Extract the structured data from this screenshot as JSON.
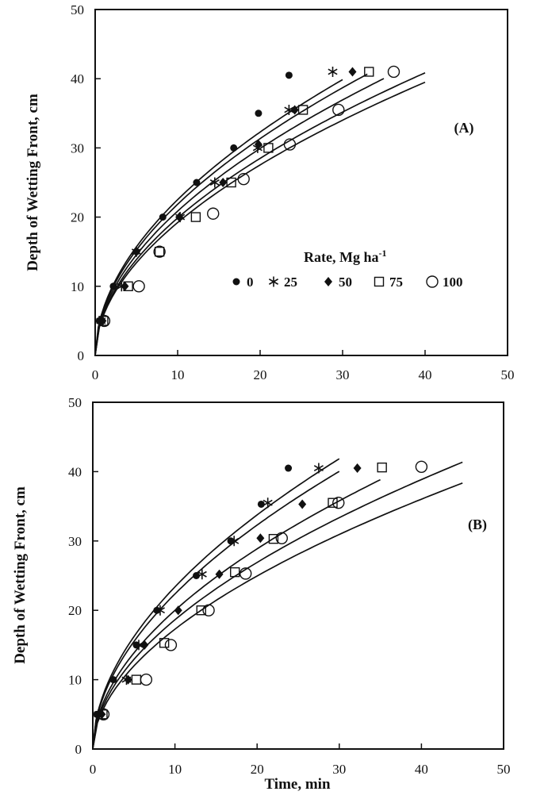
{
  "figure": {
    "xlabel": "Time, min",
    "ylabel": "Depth of Wetting Front, cm",
    "xticks": [
      "0",
      "10",
      "20",
      "30",
      "40",
      "50"
    ],
    "yticks": [
      "0",
      "10",
      "20",
      "30",
      "40",
      "50"
    ],
    "legend": {
      "title": "Rate, Mg ha",
      "title_superscript": "-1",
      "entries": [
        {
          "label": "0",
          "marker": "filled-circle"
        },
        {
          "label": "25",
          "marker": "star"
        },
        {
          "label": "50",
          "marker": "filled-diamond"
        },
        {
          "label": "75",
          "marker": "open-square"
        },
        {
          "label": "100",
          "marker": "open-circle"
        }
      ]
    }
  },
  "chart_data": [
    {
      "type": "scatter",
      "panel_label": "(A)",
      "xlabel": "",
      "ylabel": "Depth of Wetting Front, cm",
      "xlim": [
        0,
        50
      ],
      "ylim": [
        0,
        50
      ],
      "legend_position": "center-right",
      "series": [
        {
          "name": "0",
          "marker": "filled-circle",
          "points": [
            [
              0.5,
              5
            ],
            [
              2.2,
              10
            ],
            [
              5,
              15
            ],
            [
              8.2,
              20
            ],
            [
              12.3,
              25
            ],
            [
              16.8,
              30
            ],
            [
              19.8,
              35
            ],
            [
              23.5,
              40.5
            ]
          ],
          "curve": {
            "a": 6.8,
            "b": 0.52,
            "xmax": 30
          }
        },
        {
          "name": "25",
          "marker": "star",
          "points": [
            [
              0.7,
              5
            ],
            [
              3.2,
              10
            ],
            [
              5,
              15
            ],
            [
              10.3,
              20
            ],
            [
              14.5,
              25
            ],
            [
              19.7,
              30
            ],
            [
              23.5,
              35.5
            ],
            [
              28.8,
              41
            ]
          ],
          "curve": {
            "a": 6.6,
            "b": 0.52,
            "xmax": 33
          }
        },
        {
          "name": "50",
          "marker": "filled-diamond",
          "points": [
            [
              0.9,
              5
            ],
            [
              3.6,
              10
            ],
            [
              5,
              15
            ],
            [
              10.2,
              20
            ],
            [
              15.5,
              25
            ],
            [
              19.8,
              30.5
            ],
            [
              24.2,
              35.5
            ],
            [
              31.2,
              41
            ]
          ],
          "curve": {
            "a": 6.3,
            "b": 0.52,
            "xmax": 35
          }
        },
        {
          "name": "75",
          "marker": "open-square",
          "points": [
            [
              1,
              5
            ],
            [
              4,
              10
            ],
            [
              7.8,
              15
            ],
            [
              12.2,
              20
            ],
            [
              16.5,
              25
            ],
            [
              21,
              30
            ],
            [
              25.2,
              35.5
            ],
            [
              33.2,
              41
            ]
          ],
          "curve": {
            "a": 6.0,
            "b": 0.52,
            "xmax": 40
          }
        },
        {
          "name": "100",
          "marker": "open-circle",
          "points": [
            [
              1.1,
              5
            ],
            [
              5.3,
              10
            ],
            [
              7.8,
              15
            ],
            [
              14.3,
              20.5
            ],
            [
              18,
              25.5
            ],
            [
              23.6,
              30.5
            ],
            [
              29.5,
              35.5
            ],
            [
              36.2,
              41
            ]
          ],
          "curve": {
            "a": 5.8,
            "b": 0.52,
            "xmax": 40
          }
        }
      ]
    },
    {
      "type": "scatter",
      "panel_label": "(B)",
      "xlabel": "Time, min",
      "ylabel": "Depth of Wetting Front, cm",
      "xlim": [
        0,
        50
      ],
      "ylim": [
        0,
        50
      ],
      "legend_position": "none",
      "series": [
        {
          "name": "0",
          "marker": "filled-circle",
          "points": [
            [
              0.5,
              5
            ],
            [
              2.5,
              10
            ],
            [
              5.3,
              15
            ],
            [
              7.8,
              20
            ],
            [
              12.6,
              25
            ],
            [
              16.8,
              30
            ],
            [
              20.5,
              35.3
            ],
            [
              23.8,
              40.5
            ]
          ],
          "curve": {
            "a": 6.9,
            "b": 0.53,
            "xmax": 30
          }
        },
        {
          "name": "25",
          "marker": "star",
          "points": [
            [
              0.7,
              5
            ],
            [
              4.1,
              10
            ],
            [
              5.6,
              15
            ],
            [
              8.2,
              20
            ],
            [
              13.3,
              25.2
            ],
            [
              17.2,
              30
            ],
            [
              21.3,
              35.5
            ],
            [
              27.5,
              40.5
            ]
          ],
          "curve": {
            "a": 6.6,
            "b": 0.53,
            "xmax": 30
          }
        },
        {
          "name": "50",
          "marker": "filled-diamond",
          "points": [
            [
              1.1,
              5
            ],
            [
              4.3,
              10
            ],
            [
              6.3,
              15
            ],
            [
              10.4,
              20
            ],
            [
              15.4,
              25.2
            ],
            [
              20.4,
              30.4
            ],
            [
              25.5,
              35.3
            ],
            [
              32.2,
              40.5
            ]
          ],
          "curve": {
            "a": 5.9,
            "b": 0.53,
            "xmax": 35
          }
        },
        {
          "name": "75",
          "marker": "open-square",
          "points": [
            [
              1.2,
              5
            ],
            [
              5.3,
              10
            ],
            [
              8.7,
              15.3
            ],
            [
              13.2,
              20
            ],
            [
              17.3,
              25.5
            ],
            [
              22,
              30.3
            ],
            [
              29.2,
              35.5
            ],
            [
              35.2,
              40.6
            ]
          ],
          "curve": {
            "a": 5.5,
            "b": 0.53,
            "xmax": 45
          }
        },
        {
          "name": "100",
          "marker": "open-circle",
          "points": [
            [
              1.3,
              5
            ],
            [
              6.5,
              10
            ],
            [
              9.5,
              15
            ],
            [
              14.1,
              20
            ],
            [
              18.6,
              25.3
            ],
            [
              23,
              30.4
            ],
            [
              29.9,
              35.5
            ],
            [
              40,
              40.7
            ]
          ],
          "curve": {
            "a": 5.1,
            "b": 0.53,
            "xmax": 45
          }
        }
      ]
    }
  ]
}
